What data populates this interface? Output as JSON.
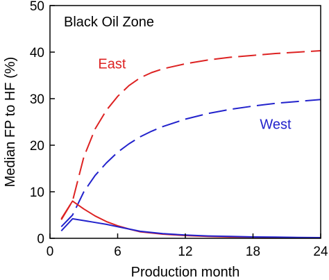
{
  "chart_data": {
    "type": "line",
    "title": "",
    "annotation": "Black Oil Zone",
    "xlabel": "Production month",
    "ylabel": "Median FP to HF (%)",
    "xlim": [
      0,
      24
    ],
    "ylim": [
      0,
      50
    ],
    "xticks": [
      0,
      6,
      12,
      18,
      24
    ],
    "yticks": [
      0,
      10,
      20,
      30,
      40,
      50
    ],
    "grid": false,
    "series": [
      {
        "name": "East",
        "group": "East",
        "color": "#dd2222",
        "dash": "dashed",
        "x": [
          1,
          2,
          3,
          4,
          5,
          6,
          7,
          8,
          9,
          10,
          12,
          14,
          16,
          18,
          20,
          22,
          24
        ],
        "y": [
          4,
          8,
          17.5,
          23.5,
          27.5,
          30.5,
          32.8,
          34.5,
          35.6,
          36.4,
          37.5,
          38.3,
          38.9,
          39.3,
          39.7,
          40.0,
          40.3
        ]
      },
      {
        "name": "West",
        "group": "West",
        "color": "#2222cc",
        "dash": "dashed",
        "x": [
          1,
          2,
          3,
          4,
          5,
          6,
          7,
          8,
          9,
          10,
          12,
          14,
          16,
          18,
          20,
          22,
          24
        ],
        "y": [
          2.5,
          5,
          10,
          13.5,
          16.2,
          18.5,
          20.3,
          21.8,
          23.0,
          24.0,
          25.6,
          26.8,
          27.7,
          28.4,
          29.0,
          29.4,
          29.8
        ]
      },
      {
        "group": "East",
        "color": "#dd2222",
        "dash": "solid",
        "x": [
          1,
          2,
          3,
          4,
          5,
          6,
          7,
          8,
          10,
          12,
          14,
          16,
          18,
          20,
          22,
          24
        ],
        "y": [
          4.2,
          8,
          6.3,
          4.8,
          3.6,
          2.7,
          2.0,
          1.4,
          0.9,
          0.6,
          0.4,
          0.3,
          0.25,
          0.2,
          0.15,
          0.1
        ]
      },
      {
        "group": "West",
        "color": "#2222cc",
        "dash": "solid",
        "x": [
          1,
          2,
          3,
          4,
          5,
          6,
          7,
          8,
          10,
          12,
          14,
          16,
          18,
          20,
          22,
          24
        ],
        "y": [
          1.6,
          4.2,
          3.8,
          3.4,
          3.0,
          2.5,
          2.0,
          1.5,
          1.0,
          0.7,
          0.5,
          0.4,
          0.3,
          0.25,
          0.2,
          0.15
        ]
      }
    ],
    "labels": [
      {
        "text": "East",
        "color": "#dd2222",
        "x": 5.5,
        "y": 36.5
      },
      {
        "text": "West",
        "color": "#2222cc",
        "x": 20,
        "y": 23.5
      }
    ]
  }
}
